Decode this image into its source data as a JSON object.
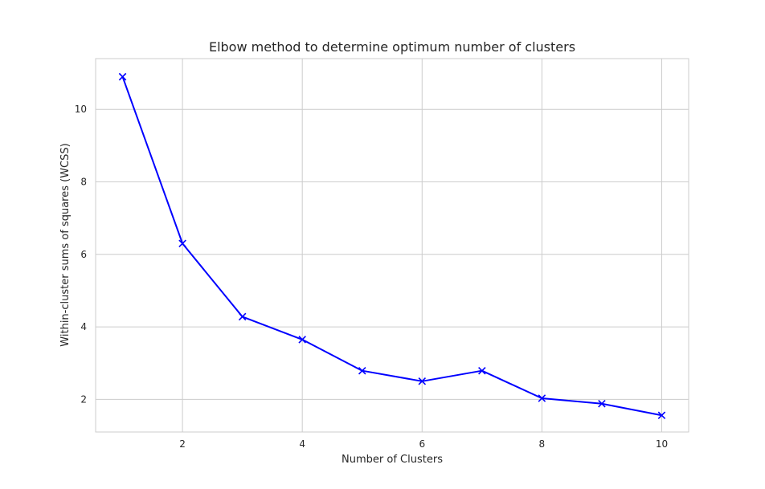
{
  "chart_data": {
    "type": "line",
    "title": "Elbow method to determine optimum number of clusters",
    "xlabel": "Number of Clusters",
    "ylabel": "Within-cluster sums of squares (WCSS)",
    "xlim": [
      0.55,
      10.45
    ],
    "ylim": [
      1.1,
      11.4
    ],
    "x_ticks": [
      2,
      4,
      6,
      8,
      10
    ],
    "y_ticks": [
      2,
      4,
      6,
      8,
      10
    ],
    "grid": true,
    "series": [
      {
        "color": "#0000ff",
        "marker": "x",
        "x": [
          1,
          2,
          3,
          4,
          5,
          6,
          7,
          8,
          9,
          10
        ],
        "y": [
          10.9,
          6.3,
          4.28,
          3.65,
          2.79,
          2.5,
          2.79,
          2.03,
          1.88,
          1.56
        ]
      }
    ]
  }
}
